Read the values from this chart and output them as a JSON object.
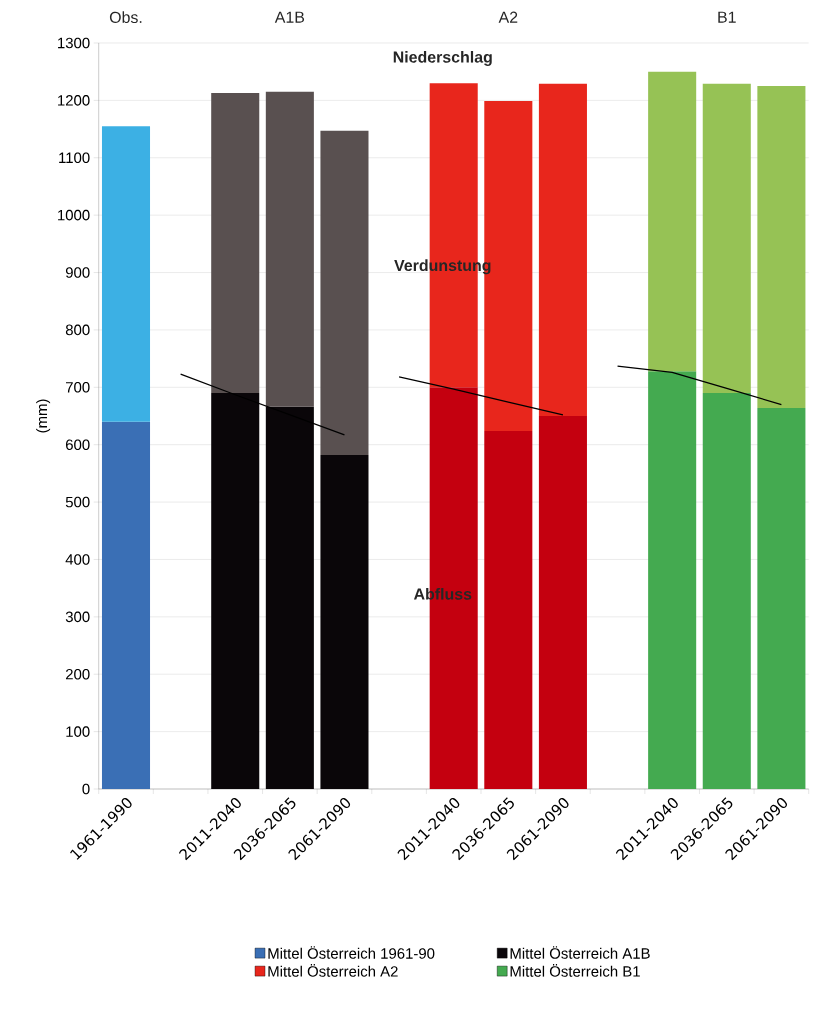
{
  "chart_data": {
    "type": "bar",
    "stacked": true,
    "ylabel": "(mm)",
    "categories": [
      "1961-1990",
      null,
      "2011-2040",
      "2036-2065",
      "2061-2090",
      null,
      "2011-2040",
      "2036-2065",
      "2061-2090",
      null,
      "2011-2040",
      "2036-2065",
      "2061-2090"
    ],
    "series": [
      {
        "name": "Mittel Österreich 1961-90",
        "color": "#3a6fb5",
        "values": [
          640,
          null,
          null,
          null,
          null,
          null,
          null,
          null,
          null,
          null,
          null,
          null,
          null
        ]
      },
      {
        "color": "#3cb0e4",
        "values": [
          515,
          null,
          null,
          null,
          null,
          null,
          null,
          null,
          null,
          null,
          null,
          null,
          null
        ]
      },
      {
        "name": "Mittel Österreich A1B",
        "color": "#0a0609",
        "values": [
          null,
          null,
          690,
          666,
          582,
          null,
          null,
          null,
          null,
          null,
          null,
          null,
          null
        ]
      },
      {
        "color": "#595050",
        "values": [
          null,
          null,
          523,
          549,
          565,
          null,
          null,
          null,
          null,
          null,
          null,
          null,
          null
        ]
      },
      {
        "color": "#c4000f",
        "values": [
          null,
          null,
          null,
          null,
          null,
          null,
          700,
          624,
          650,
          null,
          null,
          null,
          null
        ]
      },
      {
        "name": "Mittel Österreich A2",
        "color": "#e8261c",
        "values": [
          null,
          null,
          null,
          null,
          null,
          null,
          530,
          575,
          579,
          null,
          null,
          null,
          null
        ]
      },
      {
        "name": "Mittel Österreich B1",
        "color": "#44aa50",
        "values": [
          null,
          null,
          null,
          null,
          null,
          null,
          null,
          null,
          null,
          null,
          728,
          690,
          664
        ]
      },
      {
        "color": "#96c255",
        "values": [
          null,
          null,
          null,
          null,
          null,
          null,
          null,
          null,
          null,
          null,
          522,
          539,
          561
        ]
      },
      {
        "type": "line",
        "color": "#000000",
        "values": [
          null,
          723,
          687,
          652,
          617,
          null,
          null,
          null,
          null,
          null,
          null,
          null,
          null
        ]
      },
      {
        "type": "line",
        "color": "#000000",
        "values": [
          null,
          null,
          null,
          null,
          null,
          718,
          697,
          674,
          652,
          null,
          null,
          null,
          null
        ]
      },
      {
        "type": "line",
        "color": "#000000",
        "values": [
          null,
          null,
          null,
          null,
          null,
          null,
          null,
          null,
          null,
          737,
          726,
          698,
          670
        ]
      }
    ],
    "ylim": [
      0,
      1300
    ],
    "yticks": [
      0,
      100,
      200,
      300,
      400,
      500,
      600,
      700,
      800,
      900,
      1000,
      1100,
      1200,
      1300
    ],
    "grid": "y",
    "legend": "bottom",
    "annotations": [
      "Obs.",
      "A1B",
      "A2",
      "B1",
      "Niederschlag",
      "Verdunstung",
      "Abfluss"
    ]
  }
}
